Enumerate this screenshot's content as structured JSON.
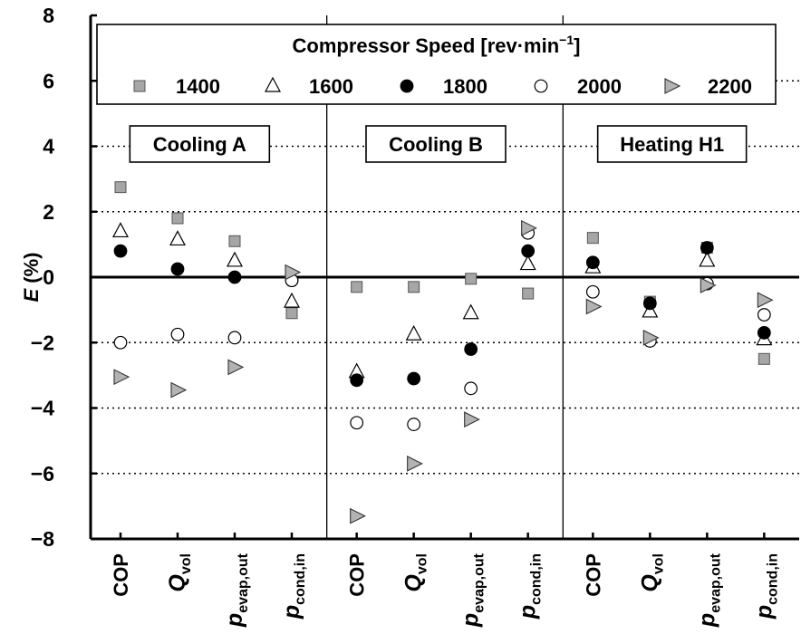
{
  "chart_data": {
    "type": "scatter",
    "title": "",
    "ylabel_main": "E",
    "ylabel_unit": " (%)",
    "ylim": [
      -8,
      8
    ],
    "yticks": [
      -8,
      -6,
      -4,
      -2,
      0,
      2,
      4,
      6,
      8
    ],
    "ytick_labels": [
      "−8",
      "−6",
      "−4",
      "−2",
      "0",
      "2",
      "4",
      "6",
      "8"
    ],
    "grid": "horizontal-dotted",
    "legend": {
      "title_main": "Compressor Speed [rev·min",
      "title_sup": "−1",
      "title_close": "]",
      "placement": "top"
    },
    "panels": [
      {
        "name": "Cooling A"
      },
      {
        "name": "Cooling B"
      },
      {
        "name": "Heating H1"
      }
    ],
    "categories": [
      {
        "main": "COP",
        "sub": ""
      },
      {
        "main": "Q",
        "sub": "vol"
      },
      {
        "main": "p",
        "sub": "evap,out"
      },
      {
        "main": "p",
        "sub": "cond,in"
      }
    ],
    "series": [
      {
        "name": "1400",
        "marker": "square",
        "color": "#a6a6a6",
        "values": [
          [
            2.75,
            1.8,
            1.1,
            -1.1
          ],
          [
            -0.3,
            -0.3,
            -0.05,
            -0.5
          ],
          [
            1.2,
            -0.75,
            0.9,
            -2.5
          ]
        ]
      },
      {
        "name": "1600",
        "marker": "triangle-up",
        "color": "#ffffff",
        "values": [
          [
            1.4,
            1.15,
            0.5,
            -0.75
          ],
          [
            -2.9,
            -1.75,
            -1.1,
            0.4
          ],
          [
            0.3,
            -1.05,
            0.5,
            -1.9
          ]
        ]
      },
      {
        "name": "1800",
        "marker": "circle",
        "color": "#000000",
        "values": [
          [
            0.8,
            0.25,
            0.0,
            -0.1
          ],
          [
            -3.15,
            -3.1,
            -2.2,
            0.8
          ],
          [
            0.45,
            -0.8,
            0.9,
            -1.7
          ]
        ]
      },
      {
        "name": "2000",
        "marker": "circle",
        "color": "#ffffff",
        "values": [
          [
            -2.0,
            -1.75,
            -1.85,
            -0.1
          ],
          [
            -4.45,
            -4.5,
            -3.4,
            1.35
          ],
          [
            -0.45,
            -1.95,
            -0.2,
            -1.15
          ]
        ]
      },
      {
        "name": "2200",
        "marker": "triangle-right",
        "color": "#b3b3b3",
        "values": [
          [
            -3.05,
            -3.45,
            -2.75,
            0.15
          ],
          [
            -7.3,
            -5.7,
            -4.35,
            1.5
          ],
          [
            -0.9,
            -1.85,
            -0.25,
            -0.7
          ]
        ]
      }
    ]
  }
}
